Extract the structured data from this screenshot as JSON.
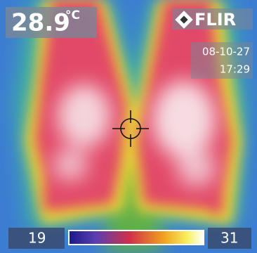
{
  "readout": {
    "temperature": "28.9",
    "unit": "°C"
  },
  "brand": "FLIR",
  "date": "08-10-27",
  "time": "17:29",
  "scale": {
    "min": "19",
    "max": "31"
  }
}
